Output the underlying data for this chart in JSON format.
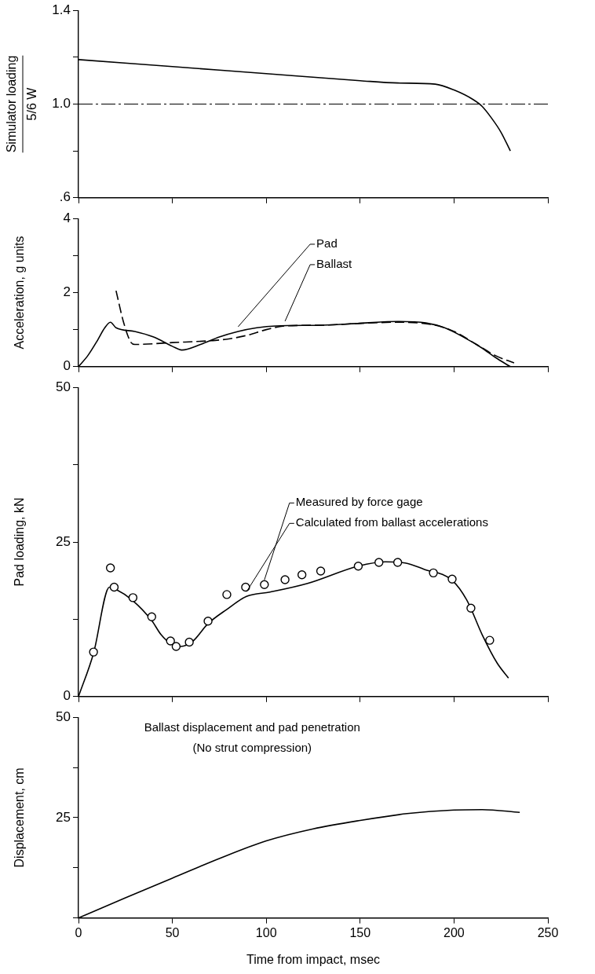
{
  "chart_data": [
    {
      "type": "line",
      "ylabel": "Simulator loading\n5/6 W",
      "xlim": [
        0,
        250
      ],
      "xticks": [
        {
          "value": 0,
          "label": null
        },
        {
          "value": 50,
          "label": null
        },
        {
          "value": 100,
          "label": null
        },
        {
          "value": 150,
          "label": null
        },
        {
          "value": 200,
          "label": null
        },
        {
          "value": 250,
          "label": null
        }
      ],
      "ylim": [
        0.6,
        1.4
      ],
      "yticks": [
        {
          "value": 0.6,
          "label": ".6"
        },
        {
          "value": 0.8,
          "label": null
        },
        {
          "value": 1.0,
          "label": "1.0"
        },
        {
          "value": 1.2,
          "label": null
        },
        {
          "value": 1.4,
          "label": "1.4"
        }
      ],
      "tick_labels": "y",
      "grid": false,
      "legend": false,
      "series": [
        {
          "color": "#000000",
          "marker": "none",
          "line_style": "solid",
          "x": [
            0,
            50,
            100,
            150,
            170,
            190,
            200,
            210,
            215,
            220,
            225,
            230
          ],
          "values": [
            1.19,
            1.16,
            1.13,
            1.1,
            1.09,
            1.085,
            1.06,
            1.02,
            0.99,
            0.94,
            0.88,
            0.8
          ]
        }
      ],
      "ref_lines": [
        {
          "axis": "y",
          "value": 1.0,
          "color": "#000000",
          "line_style": "dashed"
        }
      ]
    },
    {
      "type": "line",
      "ylabel": "Acceleration, g units",
      "xlim": [
        0,
        250
      ],
      "xticks": [
        {
          "value": 0,
          "label": null
        },
        {
          "value": 50,
          "label": null
        },
        {
          "value": 100,
          "label": null
        },
        {
          "value": 150,
          "label": null
        },
        {
          "value": 200,
          "label": null
        },
        {
          "value": 250,
          "label": null
        }
      ],
      "ylim": [
        0,
        4
      ],
      "yticks": [
        0,
        {
          "value": 1,
          "label": null
        },
        2,
        {
          "value": 3,
          "label": null
        },
        4
      ],
      "tick_labels": "y",
      "grid": false,
      "legend": false,
      "series": [
        {
          "name": "Pad",
          "color": "#000000",
          "marker": "none",
          "line_style": "solid",
          "x": [
            0,
            5,
            10,
            14,
            17,
            20,
            30,
            40,
            50,
            55,
            65,
            75,
            85,
            95,
            105,
            130,
            150,
            170,
            185,
            195,
            205,
            215,
            222,
            230
          ],
          "values": [
            0,
            0.3,
            0.7,
            1.05,
            1.2,
            1.05,
            0.95,
            0.8,
            0.55,
            0.45,
            0.6,
            0.8,
            0.95,
            1.05,
            1.1,
            1.12,
            1.17,
            1.22,
            1.18,
            1.05,
            0.8,
            0.5,
            0.25,
            0
          ]
        },
        {
          "name": "Ballast",
          "color": "#000000",
          "marker": "none",
          "line_style": "dashed",
          "x": [
            20,
            24,
            28,
            30,
            50,
            70,
            80,
            90,
            100,
            110,
            130,
            150,
            170,
            190,
            200,
            212,
            222,
            232
          ],
          "values": [
            2.05,
            1.2,
            0.65,
            0.6,
            0.65,
            0.7,
            0.75,
            0.85,
            1.0,
            1.1,
            1.12,
            1.17,
            1.2,
            1.12,
            0.95,
            0.6,
            0.3,
            0.1
          ]
        }
      ]
    },
    {
      "type": "line",
      "ylabel": "Pad loading, kN",
      "xlim": [
        0,
        250
      ],
      "xticks": [
        {
          "value": 0,
          "label": null
        },
        {
          "value": 50,
          "label": null
        },
        {
          "value": 100,
          "label": null
        },
        {
          "value": 150,
          "label": null
        },
        {
          "value": 200,
          "label": null
        },
        {
          "value": 250,
          "label": null
        }
      ],
      "ylim": [
        0,
        50
      ],
      "yticks": [
        0,
        {
          "value": 12.5,
          "label": null
        },
        25,
        {
          "value": 37.5,
          "label": null
        },
        50
      ],
      "tick_labels": "y",
      "grid": false,
      "legend": false,
      "series": [
        {
          "name": "Measured by force gage",
          "type": "scatter",
          "color": "#000000",
          "marker": "circle",
          "x": [
            8,
            17,
            19,
            29,
            39,
            49,
            52,
            59,
            69,
            79,
            89,
            99,
            110,
            119,
            129,
            149,
            160,
            170,
            189,
            199,
            209,
            219
          ],
          "values": [
            7.2,
            20.8,
            17.7,
            16,
            12.9,
            9,
            8.1,
            8.8,
            12.2,
            16.5,
            17.7,
            18.1,
            18.9,
            19.7,
            20.3,
            21.1,
            21.7,
            21.7,
            20,
            19,
            14.3,
            9.1
          ]
        },
        {
          "name": "Calculated from ballast accelerations",
          "color": "#000000",
          "marker": "none",
          "line_style": "solid",
          "x": [
            0,
            8,
            16.5,
            19.5,
            29,
            39,
            44,
            49,
            54.5,
            60.7,
            69,
            79,
            89.5,
            102,
            122,
            149,
            163.6,
            174,
            184,
            199,
            207,
            215,
            223,
            229
          ],
          "values": [
            0,
            7,
            17.7,
            17.4,
            15.5,
            12.3,
            10,
            8.6,
            8.1,
            8.9,
            11.8,
            14.1,
            16.2,
            16.9,
            18.3,
            21.1,
            21.8,
            21.6,
            20.6,
            18.8,
            15.5,
            10,
            5.4,
            3
          ]
        }
      ]
    },
    {
      "type": "line",
      "xlabel": "Time from impact, msec",
      "ylabel": "Displacement, cm",
      "xlim": [
        0,
        250
      ],
      "xticks": [
        0,
        50,
        100,
        150,
        200,
        250
      ],
      "ylim": [
        0,
        50
      ],
      "yticks": [
        {
          "value": 0,
          "label": null
        },
        {
          "value": 12.5,
          "label": null
        },
        25,
        {
          "value": 37.5,
          "label": null
        },
        50
      ],
      "grid": false,
      "legend": false,
      "annotations": [
        "Ballast displacement and pad penetration",
        "(No strut compression)"
      ],
      "series": [
        {
          "color": "#000000",
          "marker": "none",
          "line_style": "solid",
          "x": [
            0,
            25,
            50,
            75,
            100,
            125,
            150,
            175,
            200,
            215,
            235
          ],
          "values": [
            0,
            5,
            9.9,
            14.8,
            19.2,
            22.2,
            24.3,
            26,
            26.9,
            27,
            26.3
          ]
        }
      ]
    }
  ]
}
